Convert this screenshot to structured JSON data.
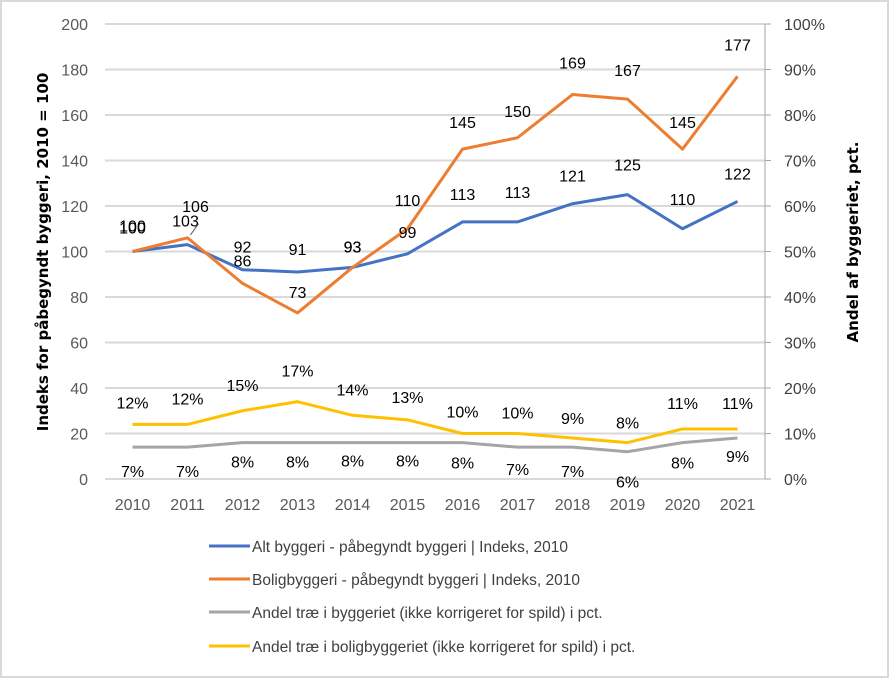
{
  "chart_data": {
    "type": "line",
    "title": "",
    "categories": [
      "2010",
      "2011",
      "2012",
      "2013",
      "2014",
      "2015",
      "2016",
      "2017",
      "2018",
      "2019",
      "2020",
      "2021"
    ],
    "ylabel": "Indeks for påbegyndt byggeri, 2010 = 100",
    "y2label": "Andel af byggeriet, pct.",
    "ylim": [
      0,
      200
    ],
    "y2lim": [
      0,
      100
    ],
    "yticks": [
      "0",
      "20",
      "40",
      "60",
      "80",
      "100",
      "120",
      "140",
      "160",
      "180",
      "200"
    ],
    "y2ticks": [
      "0%",
      "10%",
      "20%",
      "30%",
      "40%",
      "50%",
      "60%",
      "70%",
      "80%",
      "90%",
      "100%"
    ],
    "grid": true,
    "legend_position": "bottom",
    "series": [
      {
        "name": "Alt byggeri - påbegyndt byggeri | Indeks, 2010",
        "axis": "left",
        "color": "#4472c4",
        "values": [
          100,
          103,
          92,
          91,
          93,
          99,
          113,
          113,
          121,
          125,
          110,
          122
        ],
        "labels": [
          "100",
          "103",
          "92",
          "91",
          "93",
          "99",
          "113",
          "113",
          "121",
          "125",
          "110",
          "122"
        ]
      },
      {
        "name": "Boligbyggeri - påbegyndt byggeri | Indeks, 2010",
        "axis": "left",
        "color": "#ed7d31",
        "values": [
          100,
          106,
          86,
          73,
          93,
          110,
          145,
          150,
          169,
          167,
          145,
          177
        ],
        "labels": [
          "100",
          "106",
          "86",
          "73",
          "93",
          "110",
          "145",
          "150",
          "169",
          "167",
          "145",
          "177"
        ]
      },
      {
        "name": "Andel træ i byggeriet (ikke korrigeret for spild) i pct.",
        "axis": "right",
        "color": "#a5a5a5",
        "values": [
          7,
          7,
          8,
          8,
          8,
          8,
          8,
          7,
          7,
          6,
          8,
          9
        ],
        "labels": [
          "7%",
          "7%",
          "8%",
          "8%",
          "8%",
          "8%",
          "8%",
          "7%",
          "7%",
          "6%",
          "8%",
          "9%"
        ]
      },
      {
        "name": "Andel træ i boligbyggeriet (ikke korrigeret for spild) i pct.",
        "axis": "right",
        "color": "#ffc000",
        "values": [
          12,
          12,
          15,
          17,
          14,
          13,
          10,
          10,
          9,
          8,
          11,
          11
        ],
        "labels": [
          "12%",
          "12%",
          "15%",
          "17%",
          "14%",
          "13%",
          "10%",
          "10%",
          "9%",
          "8%",
          "11%",
          "11%"
        ]
      }
    ]
  }
}
